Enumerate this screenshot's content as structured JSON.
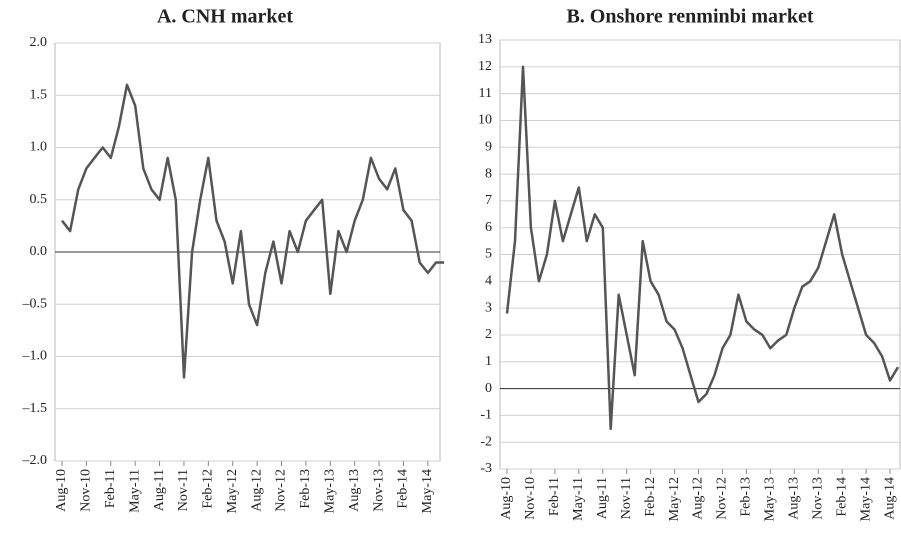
{
  "chart_data": [
    {
      "type": "line",
      "title": "A. CNH market",
      "categories": [
        "Aug-10",
        null,
        null,
        "Nov-10",
        null,
        null,
        "Feb-11",
        null,
        null,
        "May-11",
        null,
        null,
        "Aug-11",
        null,
        null,
        "Nov-11",
        null,
        null,
        "Feb-12",
        null,
        null,
        "May-12",
        null,
        null,
        "Aug-12",
        null,
        null,
        "Nov-12",
        null,
        null,
        "Feb-13",
        null,
        null,
        "May-13",
        null,
        null,
        "Aug-13",
        null,
        null,
        "Nov-13",
        null,
        null,
        "Feb-14",
        null,
        null,
        "May-14",
        null,
        null
      ],
      "values": [
        0.3,
        0.2,
        0.6,
        0.8,
        0.9,
        1.0,
        0.9,
        1.2,
        1.6,
        1.4,
        0.8,
        0.6,
        0.5,
        0.9,
        0.5,
        -1.2,
        0.0,
        0.5,
        0.9,
        0.3,
        0.1,
        -0.3,
        0.2,
        -0.5,
        -0.7,
        -0.2,
        0.1,
        -0.3,
        0.2,
        0.0,
        0.3,
        0.4,
        0.5,
        -0.4,
        0.2,
        0.0,
        0.3,
        0.5,
        0.9,
        0.7,
        0.6,
        0.8,
        0.4,
        0.3,
        -0.1,
        -0.2,
        -0.1,
        -0.1
      ],
      "color": "#555555",
      "ylim": [
        -2,
        2
      ],
      "yticks": [
        {
          "value": -2,
          "label": "–2.0"
        },
        {
          "value": -1.5,
          "label": "–1.5"
        },
        {
          "value": -1,
          "label": "–1.0"
        },
        {
          "value": -0.5,
          "label": "–0.5"
        },
        {
          "value": 0,
          "label": "0.0"
        },
        0.5,
        {
          "value": 1,
          "label": "1.0"
        },
        1.5,
        {
          "value": 2,
          "label": "2.0"
        }
      ],
      "grid": true
    },
    {
      "type": "line",
      "title": "B. Onshore renminbi market",
      "categories": [
        "Aug-10",
        null,
        null,
        "Nov-10",
        null,
        null,
        "Feb-11",
        null,
        null,
        "May-11",
        null,
        null,
        "Aug-11",
        null,
        null,
        "Nov-11",
        null,
        null,
        "Feb-12",
        null,
        null,
        "May-12",
        null,
        null,
        "Aug-12",
        null,
        null,
        "Nov-12",
        null,
        null,
        "Feb-13",
        null,
        null,
        "May-13",
        null,
        null,
        "Aug-13",
        null,
        null,
        "Nov-13",
        null,
        null,
        "Feb-14",
        null,
        null,
        "May-14",
        null,
        null,
        "Aug-14",
        null
      ],
      "values": [
        2.8,
        5.5,
        12.0,
        6.0,
        4.0,
        5.0,
        7.0,
        5.5,
        6.5,
        7.5,
        5.5,
        6.5,
        6.0,
        -1.5,
        3.5,
        2.0,
        0.5,
        5.5,
        4.0,
        3.5,
        2.5,
        2.2,
        1.5,
        0.5,
        -0.5,
        -0.2,
        0.5,
        1.5,
        2.0,
        3.5,
        2.5,
        2.2,
        2.0,
        1.5,
        1.8,
        2.0,
        3.0,
        3.8,
        4.0,
        4.5,
        5.5,
        6.5,
        5.0,
        4.0,
        3.0,
        2.0,
        1.7,
        1.2,
        0.3,
        0.8
      ],
      "color": "#555555",
      "ylim": [
        -3,
        13
      ],
      "yticks": [
        -3,
        -2,
        -1,
        0,
        1,
        2,
        3,
        4,
        5,
        6,
        7,
        8,
        9,
        10,
        11,
        12,
        13
      ],
      "grid": true
    }
  ]
}
